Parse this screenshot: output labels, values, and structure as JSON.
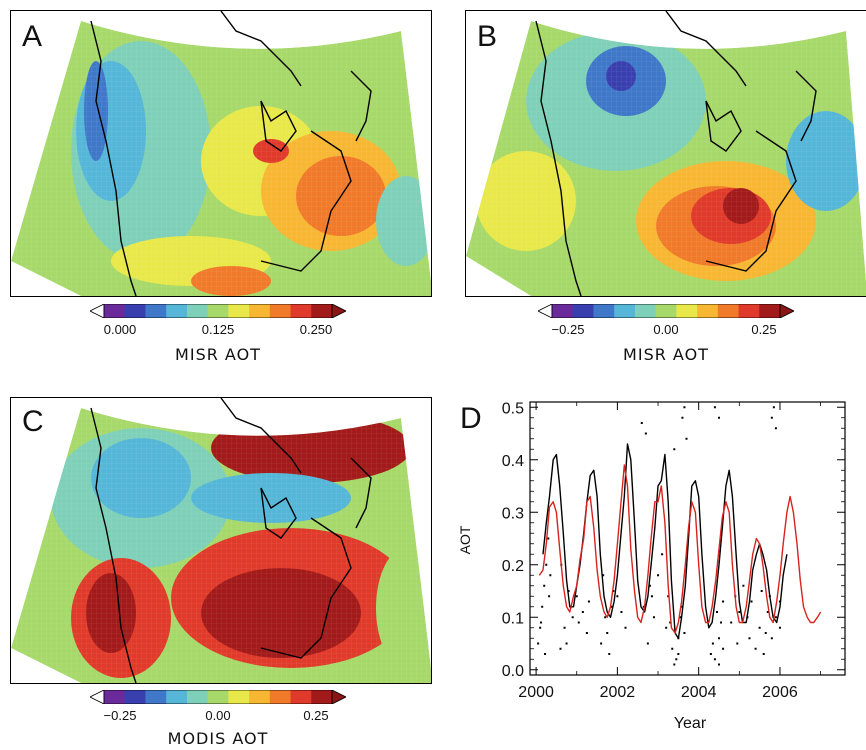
{
  "panels": [
    {
      "label": "A",
      "colorbar": {
        "ticks": [
          "0.000",
          "0.125",
          "0.250"
        ],
        "title": "MISR AOT"
      }
    },
    {
      "label": "B",
      "colorbar": {
        "ticks": [
          "−0.25",
          "0.00",
          "0.25"
        ],
        "title": "MISR AOT"
      }
    },
    {
      "label": "C",
      "colorbar": {
        "ticks": [
          "−0.25",
          "0.00",
          "0.25"
        ],
        "title": "MODIS AOT"
      }
    }
  ],
  "colors": {
    "scale": [
      "#6a2a9a",
      "#3a3fb0",
      "#3f78c8",
      "#55b6d8",
      "#7fd0b8",
      "#a6d96a",
      "#e8e84a",
      "#f7b733",
      "#f07a2a",
      "#e03a2a",
      "#a31a1a"
    ],
    "black_series": "#000000",
    "red_series": "#d8231e"
  },
  "chart_data": {
    "type": "line",
    "panel_label": "D",
    "xlabel": "Year",
    "ylabel": "AOT",
    "xlim": [
      1999.85,
      2007.6
    ],
    "ylim": [
      -0.01,
      0.51
    ],
    "xticks": [
      2000,
      2002,
      2004,
      2006
    ],
    "xtick_labels": [
      "2000",
      "2002",
      "2004",
      "2006"
    ],
    "yticks": [
      0.0,
      0.1,
      0.2,
      0.3,
      0.4,
      0.5
    ],
    "ytick_labels": [
      "0.0",
      "0.1",
      "0.2",
      "0.3",
      "0.4",
      "0.5"
    ],
    "series": [
      {
        "color": "black",
        "x": [
          2000.17,
          2000.25,
          2000.33,
          2000.42,
          2000.5,
          2000.58,
          2000.67,
          2000.75,
          2000.83,
          2000.92,
          2001.0,
          2001.08,
          2001.17,
          2001.25,
          2001.33,
          2001.42,
          2001.5,
          2001.58,
          2001.67,
          2001.75,
          2001.83,
          2001.92,
          2002.0,
          2002.08,
          2002.17,
          2002.25,
          2002.33,
          2002.42,
          2002.5,
          2002.58,
          2002.67,
          2002.75,
          2002.83,
          2002.92,
          2003.0,
          2003.08,
          2003.17,
          2003.25,
          2003.33,
          2003.42,
          2003.5,
          2003.58,
          2003.67,
          2003.75,
          2003.83,
          2003.92,
          2004.0,
          2004.08,
          2004.17,
          2004.25,
          2004.33,
          2004.42,
          2004.5,
          2004.58,
          2004.67,
          2004.75,
          2004.83,
          2004.92,
          2005.0,
          2005.08,
          2005.17,
          2005.25,
          2005.33,
          2005.42,
          2005.5,
          2005.58,
          2005.67,
          2005.75,
          2005.83,
          2005.92,
          2006.0,
          2006.08,
          2006.17
        ],
        "y": [
          0.22,
          0.28,
          0.33,
          0.4,
          0.41,
          0.35,
          0.26,
          0.17,
          0.12,
          0.12,
          0.16,
          0.2,
          0.26,
          0.32,
          0.37,
          0.38,
          0.33,
          0.22,
          0.14,
          0.11,
          0.1,
          0.13,
          0.18,
          0.25,
          0.33,
          0.43,
          0.4,
          0.28,
          0.17,
          0.12,
          0.11,
          0.14,
          0.2,
          0.27,
          0.35,
          0.36,
          0.41,
          0.32,
          0.17,
          0.07,
          0.06,
          0.1,
          0.16,
          0.25,
          0.35,
          0.36,
          0.33,
          0.22,
          0.12,
          0.08,
          0.09,
          0.14,
          0.2,
          0.27,
          0.35,
          0.38,
          0.33,
          0.22,
          0.13,
          0.09,
          0.09,
          0.13,
          0.19,
          0.22,
          0.24,
          0.22,
          0.19,
          0.14,
          0.1,
          0.09,
          0.12,
          0.18,
          0.22
        ]
      },
      {
        "color": "red",
        "x": [
          2000.08,
          2000.17,
          2000.25,
          2000.33,
          2000.42,
          2000.5,
          2000.58,
          2000.67,
          2000.75,
          2000.83,
          2000.92,
          2001.0,
          2001.08,
          2001.17,
          2001.25,
          2001.33,
          2001.42,
          2001.5,
          2001.58,
          2001.67,
          2001.75,
          2001.83,
          2001.92,
          2002.0,
          2002.08,
          2002.17,
          2002.25,
          2002.33,
          2002.42,
          2002.5,
          2002.58,
          2002.67,
          2002.75,
          2002.83,
          2002.92,
          2003.0,
          2003.08,
          2003.17,
          2003.25,
          2003.33,
          2003.42,
          2003.5,
          2003.58,
          2003.67,
          2003.75,
          2003.83,
          2003.92,
          2004.0,
          2004.08,
          2004.17,
          2004.25,
          2004.33,
          2004.42,
          2004.5,
          2004.58,
          2004.67,
          2004.75,
          2004.83,
          2004.92,
          2005.0,
          2005.08,
          2005.17,
          2005.25,
          2005.33,
          2005.42,
          2005.5,
          2005.58,
          2005.67,
          2005.75,
          2005.83,
          2005.92,
          2006.0,
          2006.08,
          2006.17,
          2006.25,
          2006.33,
          2006.42,
          2006.5,
          2006.58,
          2006.67,
          2006.75,
          2006.83,
          2006.92,
          2007.0
        ],
        "y": [
          0.18,
          0.19,
          0.24,
          0.31,
          0.32,
          0.3,
          0.23,
          0.16,
          0.12,
          0.11,
          0.14,
          0.16,
          0.21,
          0.25,
          0.32,
          0.33,
          0.27,
          0.19,
          0.14,
          0.11,
          0.1,
          0.12,
          0.17,
          0.24,
          0.31,
          0.39,
          0.35,
          0.23,
          0.15,
          0.1,
          0.09,
          0.12,
          0.18,
          0.25,
          0.32,
          0.32,
          0.35,
          0.28,
          0.16,
          0.08,
          0.07,
          0.09,
          0.13,
          0.2,
          0.27,
          0.32,
          0.3,
          0.2,
          0.12,
          0.09,
          0.09,
          0.12,
          0.17,
          0.23,
          0.29,
          0.32,
          0.3,
          0.2,
          0.12,
          0.09,
          0.09,
          0.12,
          0.17,
          0.22,
          0.25,
          0.24,
          0.2,
          0.14,
          0.1,
          0.09,
          0.13,
          0.18,
          0.24,
          0.3,
          0.33,
          0.3,
          0.24,
          0.17,
          0.12,
          0.1,
          0.09,
          0.09,
          0.1,
          0.11
        ]
      }
    ],
    "scatter": {
      "color": "black",
      "x": [
        2000.05,
        2000.1,
        2000.15,
        2000.2,
        2000.25,
        2000.3,
        2000.35,
        2000.12,
        2000.22,
        2000.32,
        2000.6,
        2000.7,
        2000.8,
        2000.9,
        2000.62,
        2000.75,
        2000.85,
        2001.0,
        2001.05,
        2001.15,
        2001.25,
        2001.3,
        2001.6,
        2001.7,
        2001.8,
        2001.9,
        2001.65,
        2001.75,
        2001.85,
        2002.0,
        2002.1,
        2002.2,
        2002.6,
        2002.7,
        2002.8,
        2002.9,
        2002.65,
        2002.75,
        2002.85,
        2003.0,
        2003.1,
        2003.2,
        2003.35,
        2003.45,
        2003.5,
        2003.55,
        2003.6,
        2003.65,
        2003.7,
        2003.4,
        2003.5,
        2003.6,
        2003.65,
        2003.3,
        2003.4,
        2003.25,
        2004.3,
        2004.4,
        2004.5,
        2004.55,
        2004.6,
        2004.35,
        2004.45,
        2004.5,
        2004.6,
        2004.4,
        2004.5,
        2004.8,
        2004.9,
        2004.95,
        2005.0,
        2005.1,
        2005.2,
        2005.25,
        2005.3,
        2005.4,
        2005.5,
        2005.55,
        2005.6,
        2005.65,
        2005.7,
        2005.75,
        2005.8,
        2005.9,
        2006.0,
        2005.8,
        2005.85,
        2005.9,
        2006.0
      ],
      "y": [
        0.05,
        0.08,
        0.12,
        0.16,
        0.2,
        0.25,
        0.18,
        0.09,
        0.03,
        0.14,
        0.04,
        0.08,
        0.15,
        0.1,
        0.2,
        0.05,
        0.12,
        0.14,
        0.09,
        0.11,
        0.07,
        0.13,
        0.05,
        0.1,
        0.03,
        0.15,
        0.18,
        0.07,
        0.12,
        0.14,
        0.11,
        0.08,
        0.47,
        0.45,
        0.16,
        0.1,
        0.12,
        0.05,
        0.14,
        0.18,
        0.22,
        0.08,
        0.04,
        0.02,
        0.06,
        0.1,
        0.48,
        0.5,
        0.44,
        0.42,
        0.03,
        0.12,
        0.07,
        0.09,
        0.01,
        0.14,
        0.03,
        0.02,
        0.06,
        0.09,
        0.13,
        0.05,
        0.11,
        0.01,
        0.04,
        0.5,
        0.48,
        0.09,
        0.14,
        0.05,
        0.11,
        0.16,
        0.1,
        0.06,
        0.13,
        0.04,
        0.08,
        0.15,
        0.03,
        0.07,
        0.11,
        0.14,
        0.06,
        0.1,
        0.13,
        0.48,
        0.5,
        0.46,
        0.08
      ]
    }
  }
}
